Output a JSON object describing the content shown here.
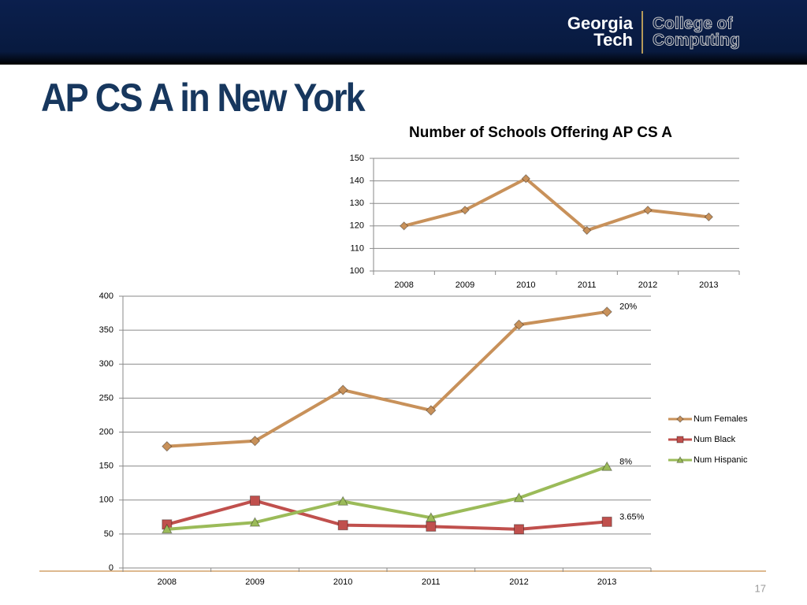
{
  "slide": {
    "title": "AP CS A in New York",
    "page_number": 17,
    "logo": {
      "line1": "Georgia",
      "line2": "Tech",
      "line3": "College of",
      "line4": "Computing"
    }
  },
  "chart_data": [
    {
      "type": "line",
      "title": "Number of Schools Offering AP CS A",
      "categories": [
        "2008",
        "2009",
        "2010",
        "2011",
        "2012",
        "2013"
      ],
      "series": [
        {
          "name": null,
          "color": "#c8915a",
          "marker": "diamond",
          "values": [
            120,
            127,
            141,
            118,
            127,
            124
          ]
        }
      ],
      "ylim": [
        100,
        150
      ],
      "yticks": [
        100,
        110,
        120,
        130,
        140,
        150
      ],
      "grid": true,
      "legend": null
    },
    {
      "type": "line",
      "categories": [
        "2008",
        "2009",
        "2010",
        "2011",
        "2012",
        "2013"
      ],
      "series": [
        {
          "name": "Num Females",
          "color": "#c8915a",
          "marker": "diamond",
          "values": [
            179,
            187,
            262,
            232,
            358,
            377
          ],
          "annotation": "20%"
        },
        {
          "name": "Num Black",
          "color": "#c0504d",
          "marker": "square",
          "values": [
            64,
            99,
            63,
            61,
            57,
            68
          ],
          "annotation": "3.65%"
        },
        {
          "name": "Num Hispanic",
          "color": "#9bbb59",
          "marker": "triangle",
          "values": [
            57,
            67,
            98,
            74,
            103,
            149
          ],
          "annotation": "8%"
        }
      ],
      "ylim": [
        0,
        400
      ],
      "yticks": [
        0,
        50,
        100,
        150,
        200,
        250,
        300,
        350,
        400
      ],
      "grid": true,
      "legend": "right"
    }
  ]
}
